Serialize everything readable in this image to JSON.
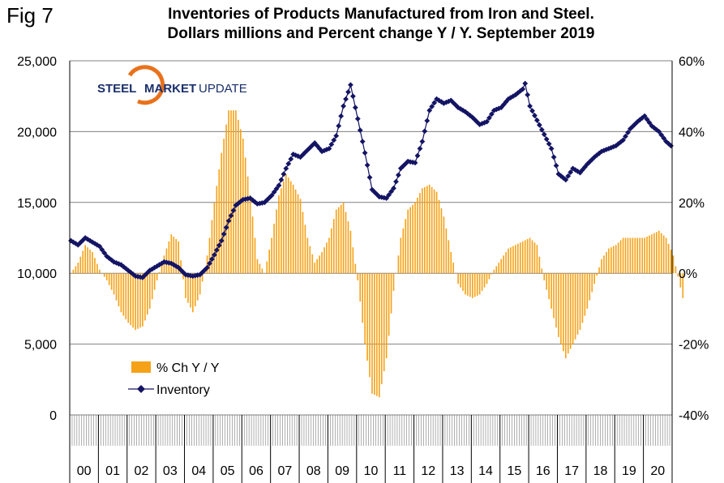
{
  "fig_label": "Fig 7",
  "title_line1": "Inventories of Products Manufactured from Iron and Steel.",
  "title_line2": "Dollars millions and Percent change Y / Y. September 2019",
  "logo": {
    "word1": "STEEL",
    "word2": "MARKET",
    "word3": "UPDATE"
  },
  "colors": {
    "bars": "#f5a218",
    "inventory": "#141464",
    "grid": "#808080"
  },
  "chart_data": {
    "type": "bar+line",
    "x_labels": [
      "00",
      "01",
      "02",
      "03",
      "04",
      "05",
      "06",
      "07",
      "08",
      "09",
      "10",
      "11",
      "12",
      "13",
      "14",
      "15",
      "16",
      "17",
      "18",
      "19",
      "20"
    ],
    "y_left": {
      "ticks": [
        "0",
        "5,000",
        "10,000",
        "15,000",
        "20,000",
        "25,000"
      ],
      "range": [
        0,
        25000
      ]
    },
    "y_right": {
      "ticks": [
        "-40%",
        "-20%",
        "0%",
        "20%",
        "40%",
        "60%"
      ],
      "range": [
        -40,
        60
      ]
    },
    "legend_placement": "bottom-left",
    "grid": "horizontal",
    "series": [
      {
        "name": "% Ch Y / Y",
        "type": "bar",
        "axis": "right",
        "anchors": [
          [
            0,
            0
          ],
          [
            3,
            3
          ],
          [
            6,
            8
          ],
          [
            9,
            6
          ],
          [
            12,
            1
          ],
          [
            15,
            -2
          ],
          [
            18,
            -6
          ],
          [
            21,
            -11
          ],
          [
            24,
            -14
          ],
          [
            27,
            -16
          ],
          [
            30,
            -15
          ],
          [
            33,
            -10
          ],
          [
            36,
            -2
          ],
          [
            39,
            5
          ],
          [
            42,
            11
          ],
          [
            45,
            9
          ],
          [
            48,
            -7
          ],
          [
            51,
            -11
          ],
          [
            54,
            -6
          ],
          [
            57,
            5
          ],
          [
            60,
            20
          ],
          [
            63,
            34
          ],
          [
            66,
            46
          ],
          [
            69,
            46
          ],
          [
            72,
            38
          ],
          [
            75,
            22
          ],
          [
            78,
            4
          ],
          [
            81,
            0
          ],
          [
            84,
            10
          ],
          [
            87,
            22
          ],
          [
            90,
            28
          ],
          [
            93,
            25
          ],
          [
            96,
            21
          ],
          [
            99,
            10
          ],
          [
            102,
            3
          ],
          [
            105,
            6
          ],
          [
            108,
            10
          ],
          [
            111,
            18
          ],
          [
            114,
            20
          ],
          [
            117,
            12
          ],
          [
            120,
            -2
          ],
          [
            123,
            -20
          ],
          [
            126,
            -34
          ],
          [
            129,
            -35
          ],
          [
            132,
            -24
          ],
          [
            135,
            -5
          ],
          [
            138,
            10
          ],
          [
            141,
            18
          ],
          [
            144,
            20
          ],
          [
            147,
            24
          ],
          [
            150,
            25
          ],
          [
            153,
            23
          ],
          [
            156,
            16
          ],
          [
            159,
            6
          ],
          [
            162,
            -3
          ],
          [
            165,
            -6
          ],
          [
            168,
            -7
          ],
          [
            171,
            -6
          ],
          [
            174,
            -3
          ],
          [
            177,
            1
          ],
          [
            180,
            4
          ],
          [
            183,
            7
          ],
          [
            186,
            8
          ],
          [
            189,
            9
          ],
          [
            192,
            10
          ],
          [
            195,
            8
          ],
          [
            198,
            -2
          ],
          [
            201,
            -10
          ],
          [
            204,
            -18
          ],
          [
            207,
            -24
          ],
          [
            210,
            -20
          ],
          [
            213,
            -16
          ],
          [
            216,
            -10
          ],
          [
            219,
            -3
          ],
          [
            222,
            4
          ],
          [
            225,
            7
          ],
          [
            228,
            8
          ],
          [
            231,
            10
          ],
          [
            234,
            10
          ],
          [
            237,
            10
          ],
          [
            240,
            10
          ],
          [
            243,
            11
          ],
          [
            246,
            12
          ],
          [
            249,
            10
          ],
          [
            252,
            5
          ],
          [
            255,
            -4
          ],
          [
            256,
            -7
          ]
        ]
      },
      {
        "name": "Inventory",
        "type": "line",
        "axis": "left",
        "anchors": [
          [
            0,
            12300
          ],
          [
            3,
            12000
          ],
          [
            6,
            12500
          ],
          [
            9,
            12200
          ],
          [
            12,
            11900
          ],
          [
            15,
            11200
          ],
          [
            18,
            10800
          ],
          [
            21,
            10600
          ],
          [
            24,
            10200
          ],
          [
            27,
            9800
          ],
          [
            30,
            9700
          ],
          [
            33,
            10200
          ],
          [
            36,
            10500
          ],
          [
            39,
            10800
          ],
          [
            42,
            10700
          ],
          [
            45,
            10400
          ],
          [
            48,
            9900
          ],
          [
            51,
            9800
          ],
          [
            54,
            9900
          ],
          [
            57,
            10400
          ],
          [
            60,
            11300
          ],
          [
            63,
            12300
          ],
          [
            66,
            13700
          ],
          [
            69,
            14800
          ],
          [
            72,
            15200
          ],
          [
            75,
            15300
          ],
          [
            78,
            14900
          ],
          [
            81,
            15000
          ],
          [
            84,
            15500
          ],
          [
            87,
            16200
          ],
          [
            90,
            17400
          ],
          [
            93,
            18400
          ],
          [
            96,
            18200
          ],
          [
            99,
            18700
          ],
          [
            102,
            19200
          ],
          [
            105,
            18600
          ],
          [
            108,
            18800
          ],
          [
            111,
            19700
          ],
          [
            114,
            21800
          ],
          [
            117,
            23300
          ],
          [
            120,
            20900
          ],
          [
            123,
            18500
          ],
          [
            126,
            15900
          ],
          [
            129,
            15400
          ],
          [
            132,
            15300
          ],
          [
            135,
            16000
          ],
          [
            138,
            17400
          ],
          [
            141,
            17900
          ],
          [
            144,
            17800
          ],
          [
            147,
            19300
          ],
          [
            150,
            21500
          ],
          [
            153,
            22300
          ],
          [
            156,
            22000
          ],
          [
            159,
            22200
          ],
          [
            162,
            21700
          ],
          [
            165,
            21400
          ],
          [
            168,
            21000
          ],
          [
            171,
            20500
          ],
          [
            174,
            20700
          ],
          [
            177,
            21500
          ],
          [
            180,
            21700
          ],
          [
            183,
            22300
          ],
          [
            186,
            22600
          ],
          [
            189,
            23000
          ],
          [
            190,
            23400
          ],
          [
            192,
            21800
          ],
          [
            195,
            20800
          ],
          [
            198,
            19800
          ],
          [
            201,
            18800
          ],
          [
            204,
            17000
          ],
          [
            207,
            16600
          ],
          [
            210,
            17400
          ],
          [
            213,
            17100
          ],
          [
            216,
            17700
          ],
          [
            219,
            18200
          ],
          [
            222,
            18600
          ],
          [
            225,
            18800
          ],
          [
            228,
            19000
          ],
          [
            231,
            19400
          ],
          [
            234,
            20200
          ],
          [
            237,
            20700
          ],
          [
            240,
            21100
          ],
          [
            243,
            20400
          ],
          [
            246,
            20000
          ],
          [
            249,
            19300
          ],
          [
            251,
            19000
          ]
        ]
      }
    ]
  }
}
